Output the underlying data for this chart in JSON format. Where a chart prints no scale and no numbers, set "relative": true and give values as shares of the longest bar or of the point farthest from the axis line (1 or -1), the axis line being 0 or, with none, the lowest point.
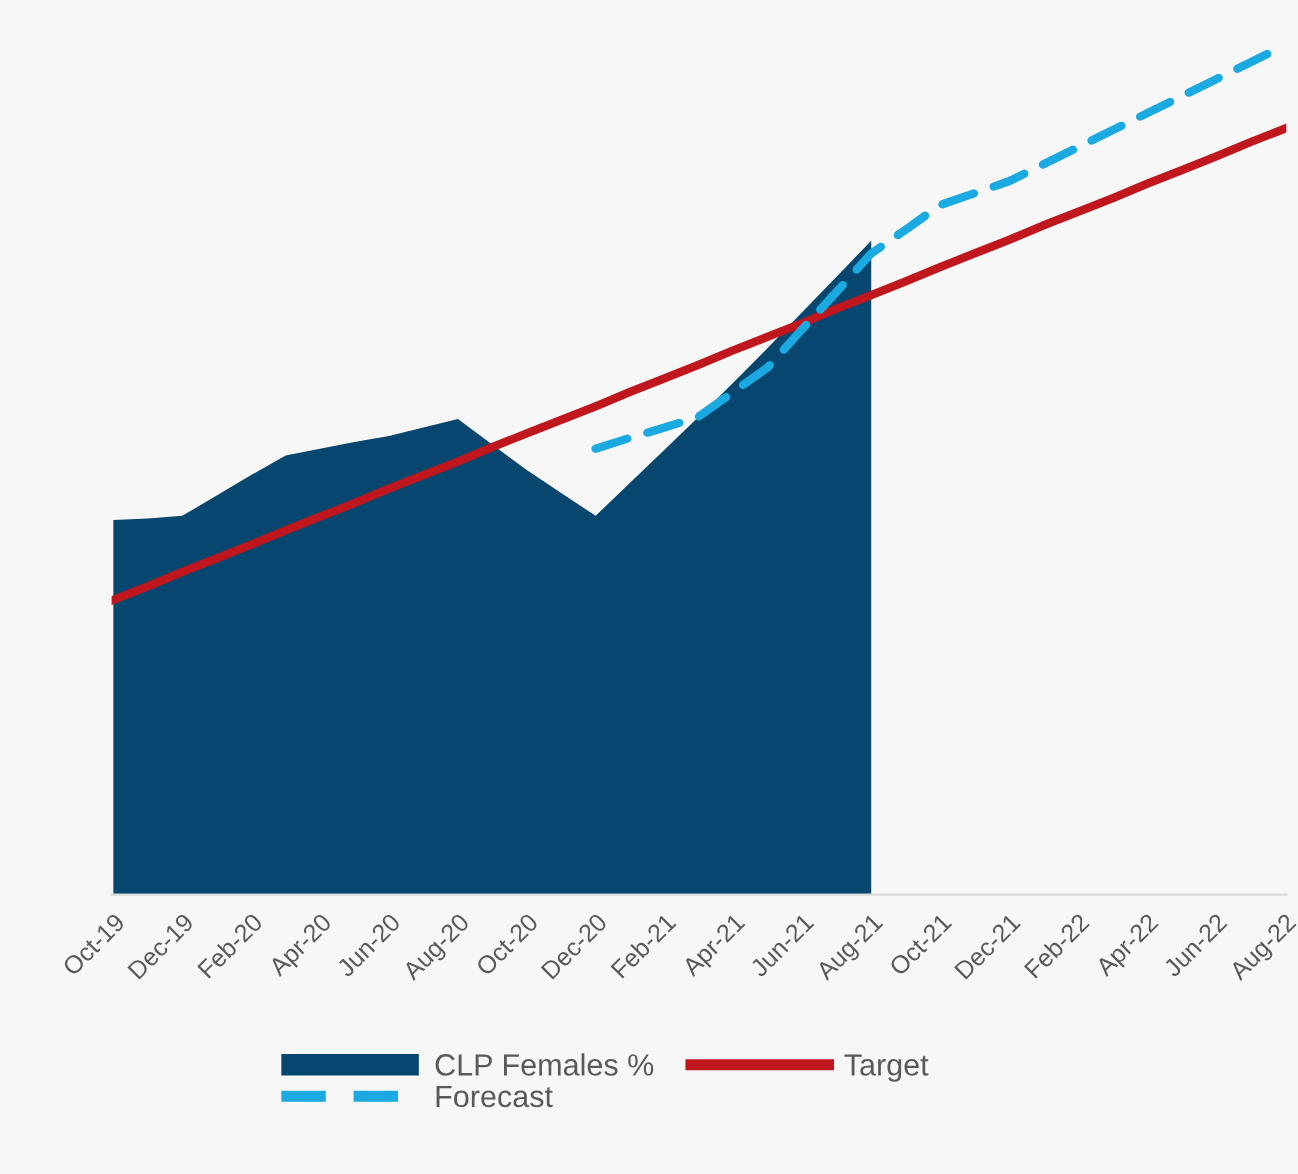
{
  "chart_data": {
    "type": "area",
    "relative": true,
    "legend": "bottom",
    "grid": false,
    "categories": [
      "Oct-19",
      null,
      "Dec-19",
      null,
      "Feb-20",
      null,
      "Apr-20",
      null,
      "Jun-20",
      null,
      "Aug-20",
      null,
      "Oct-20",
      null,
      "Dec-20",
      null,
      "Feb-21",
      null,
      "Apr-21",
      null,
      "Jun-21",
      null,
      "Aug-21",
      null,
      "Oct-21",
      null,
      "Dec-21",
      null,
      "Feb-22",
      null,
      "Apr-22",
      null,
      "Jun-22",
      null,
      "Aug-22"
    ],
    "series": [
      {
        "name": "CLP Females %",
        "color": "#07466e",
        "values": [
          0.441,
          0.443,
          0.446,
          0.47,
          0.494,
          0.517,
          0.525,
          0.533,
          0.54,
          0.55,
          0.56,
          0.53,
          0.5,
          0.473,
          0.446,
          0.485,
          0.524,
          0.563,
          0.603,
          0.644,
          0.686,
          0.728,
          0.77,
          null,
          null,
          null,
          null,
          null,
          null,
          null,
          null,
          null,
          null,
          null,
          null
        ]
      },
      {
        "name": "Target",
        "type": "line",
        "color": "#c0161d",
        "line_style": "solid",
        "values": [
          0.347,
          0.363,
          0.38,
          0.396,
          0.412,
          0.429,
          0.445,
          0.461,
          0.478,
          0.494,
          0.51,
          0.527,
          0.543,
          0.559,
          0.575,
          0.592,
          0.608,
          0.624,
          0.641,
          0.657,
          0.673,
          0.69,
          0.706,
          0.722,
          0.739,
          0.755,
          0.771,
          0.788,
          0.804,
          0.82,
          0.837,
          0.853,
          0.869,
          0.886,
          0.902
        ]
      },
      {
        "name": "Forecast",
        "type": "line",
        "color": "#1ba9e1",
        "line_style": "dashed",
        "values": [
          null,
          null,
          null,
          null,
          null,
          null,
          null,
          null,
          null,
          null,
          null,
          null,
          null,
          null,
          0.525,
          0.538,
          0.55,
          0.563,
          0.592,
          0.621,
          0.666,
          0.71,
          0.755,
          0.783,
          0.812,
          0.826,
          0.84,
          0.86,
          0.88,
          0.9,
          0.92,
          0.94,
          0.96,
          0.98,
          1.0
        ]
      }
    ]
  }
}
